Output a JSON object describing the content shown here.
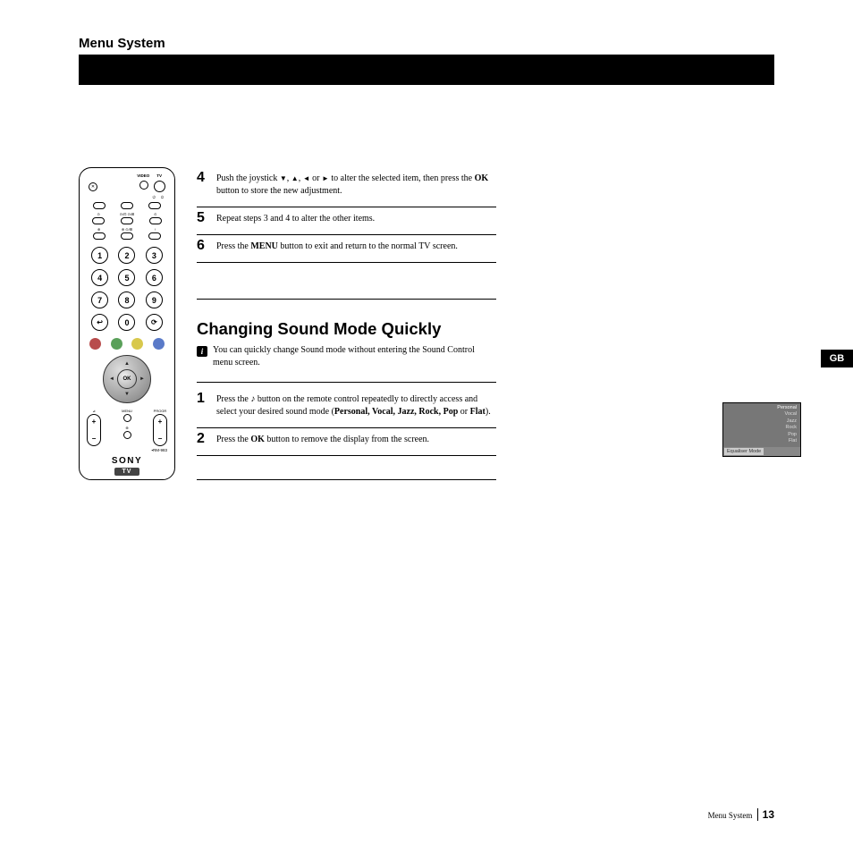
{
  "header": {
    "section": "Menu System"
  },
  "remote": {
    "top_labels": {
      "video": "VIDEO",
      "tv": "TV"
    },
    "power_sym": "⏻",
    "numpad": [
      "1",
      "2",
      "3",
      "4",
      "5",
      "6",
      "7",
      "8",
      "9",
      "↩",
      "0",
      "⟳"
    ],
    "color_btns": [
      "#b84c4c",
      "#5aa05a",
      "#d8c84c",
      "#5a7ac8"
    ],
    "ok": "OK",
    "vol_label": "⊿",
    "progr_label": "PROGR",
    "menu_label": "MENU",
    "plus": "+",
    "minus": "−",
    "model": "RM-983",
    "brand": "SONY",
    "badge": "TV"
  },
  "steps_a": [
    {
      "n": "4",
      "pre": "Push the joystick ",
      "post": " to alter the selected item, then press the ",
      "bold1": "OK",
      "post2": " button to store the new adjustment."
    },
    {
      "n": "5",
      "text": "Repeat steps 3 and 4 to alter the other items."
    },
    {
      "n": "6",
      "pre": "Press the ",
      "bold1": "MENU",
      "post": " button to exit and return to the normal TV screen."
    }
  ],
  "subheading": "Changing Sound Mode Quickly",
  "info_text": "You can quickly change Sound mode without entering the Sound Control menu screen.",
  "steps_b": [
    {
      "n": "1",
      "pre": "Press the  ",
      "post": " button on the remote control repeatedly to directly access and select your desired sound mode (",
      "bolds": "Personal, Vocal, Jazz, Rock, Pop",
      "post2": " or ",
      "bold2": "Flat",
      "post3": ")."
    },
    {
      "n": "2",
      "pre": "Press the ",
      "bold1": "OK",
      "post": " button to remove the display from the screen."
    }
  ],
  "gb": "GB",
  "eq": {
    "items": [
      "Personal",
      "Vocal",
      "Jazz",
      "Rock",
      "Pop",
      "Flat"
    ],
    "label": "Equaliser Mode"
  },
  "footer": {
    "section": "Menu System",
    "page": "13"
  },
  "arrows": {
    "down": "▼",
    "up": "▲",
    "left": "◄",
    "right": "►"
  },
  "note_glyph": "♪"
}
